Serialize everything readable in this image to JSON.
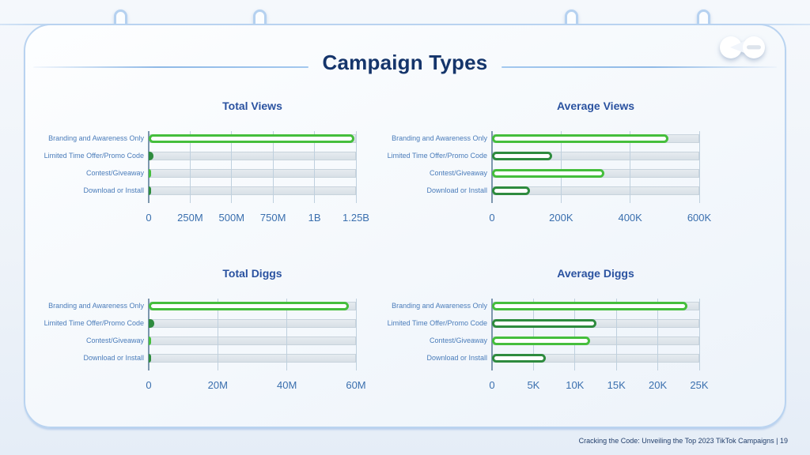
{
  "slide": {
    "title": "Campaign Types",
    "footer": "Cracking the Code: Unveiling the Top 2023 TikTok Campaigns | 19"
  },
  "colors": {
    "bright_green": "#45BE3C",
    "dark_green": "#2E8B3E",
    "slide_title_navy": "#15356B",
    "chart_title_blue": "#2A52A0",
    "category_label_blue": "#4A7CBA",
    "tick_label_blue": "#3A6FAE",
    "track_fill": "#DCE3E9",
    "gridline_blue": "#BFD0DE",
    "axis_line_blue": "#7D97AE",
    "card_border_blue": "#B9D3F0"
  },
  "chart_data": [
    {
      "type": "bar",
      "orientation": "horizontal",
      "title": "Total Views",
      "categories": [
        "Branding and Awareness Only",
        "Limited Time Offer/Promo Code",
        "Contest/Giveaway",
        "Download or Install"
      ],
      "values": [
        1240000000,
        30000000,
        6000000,
        6000000
      ],
      "xlim": [
        0,
        1250000000
      ],
      "tick_labels": [
        "0",
        "250M",
        "500M",
        "750M",
        "1B",
        "1.25B"
      ],
      "bar_palette": [
        "bright",
        "dark",
        "bright",
        "dark"
      ],
      "grid": true,
      "legend": false
    },
    {
      "type": "bar",
      "orientation": "horizontal",
      "title": "Average Views",
      "categories": [
        "Branding and Awareness Only",
        "Limited Time Offer/Promo Code",
        "Contest/Giveaway",
        "Download or Install"
      ],
      "values": [
        510000,
        175000,
        325000,
        110000
      ],
      "xlim": [
        0,
        600000
      ],
      "tick_labels": [
        "0",
        "200K",
        "400K",
        "600K"
      ],
      "bar_palette": [
        "bright",
        "dark",
        "bright",
        "dark"
      ],
      "grid": true,
      "legend": false
    },
    {
      "type": "bar",
      "orientation": "horizontal",
      "title": "Total Diggs",
      "categories": [
        "Branding and Awareness Only",
        "Limited Time Offer/Promo Code",
        "Contest/Giveaway",
        "Download or Install"
      ],
      "values": [
        58000000,
        1500000,
        500000,
        500000
      ],
      "xlim": [
        0,
        60000000
      ],
      "tick_labels": [
        "0",
        "20M",
        "40M",
        "60M"
      ],
      "bar_palette": [
        "bright",
        "dark",
        "bright",
        "dark"
      ],
      "grid": true,
      "legend": false
    },
    {
      "type": "bar",
      "orientation": "horizontal",
      "title": "Average Diggs",
      "categories": [
        "Branding and Awareness Only",
        "Limited Time Offer/Promo Code",
        "Contest/Giveaway",
        "Download or Install"
      ],
      "values": [
        23600,
        12600,
        11800,
        6500
      ],
      "xlim": [
        0,
        25000
      ],
      "tick_labels": [
        "0",
        "5K",
        "10K",
        "15K",
        "20K",
        "25K"
      ],
      "bar_palette": [
        "bright",
        "dark",
        "bright",
        "dark"
      ],
      "grid": true,
      "legend": false
    }
  ]
}
